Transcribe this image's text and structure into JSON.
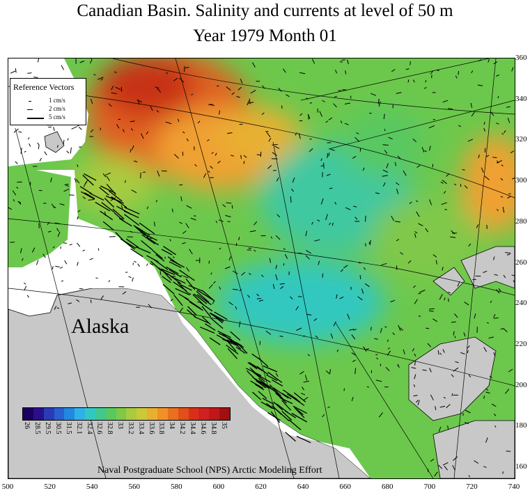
{
  "title": {
    "line1": "Canadian Basin. Salinity and currents at level of 50 m",
    "line2": "Year 1979   Month  01"
  },
  "reference_vectors": {
    "title": "Reference Vectors",
    "items": [
      {
        "label": "1 cm/s",
        "speed": 1
      },
      {
        "label": "2 cm/s",
        "speed": 2
      },
      {
        "label": "5 cm/s",
        "speed": 5
      }
    ]
  },
  "land_label": "Alaska",
  "credit": "Naval Postgraduate School (NPS) Arctic Modeling Effort",
  "colorbar": {
    "labels": [
      "26",
      "28.5",
      "29.5",
      "30.5",
      "31.5",
      "32.1",
      "32.4",
      "32.6",
      "32.8",
      "33",
      "33.2",
      "33.4",
      "33.6",
      "33.8",
      "34",
      "34.2",
      "34.4",
      "34.6",
      "34.8",
      "35"
    ],
    "colors": [
      "#1a0060",
      "#28108c",
      "#2a3cb4",
      "#2860d0",
      "#2288e0",
      "#30b0e8",
      "#30c8c0",
      "#40c890",
      "#58c860",
      "#80c848",
      "#a8cc40",
      "#ccc838",
      "#e8b030",
      "#f09028",
      "#e87020",
      "#e05018",
      "#d83018",
      "#d02020",
      "#c01818",
      "#a01010"
    ]
  },
  "x_axis": {
    "ticks": [
      "500",
      "520",
      "540",
      "560",
      "580",
      "600",
      "620",
      "640",
      "660",
      "680",
      "700",
      "720",
      "740"
    ]
  },
  "y_axis": {
    "ticks": [
      "160",
      "180",
      "200",
      "220",
      "240",
      "260",
      "280",
      "300",
      "320",
      "340",
      "360"
    ]
  },
  "colors": {
    "land": "#c8c8c8",
    "ocean_green": "#6cc84c",
    "ocean_teal": "#40c8a0",
    "ocean_orange": "#f0a030",
    "ocean_red": "#d85020"
  }
}
